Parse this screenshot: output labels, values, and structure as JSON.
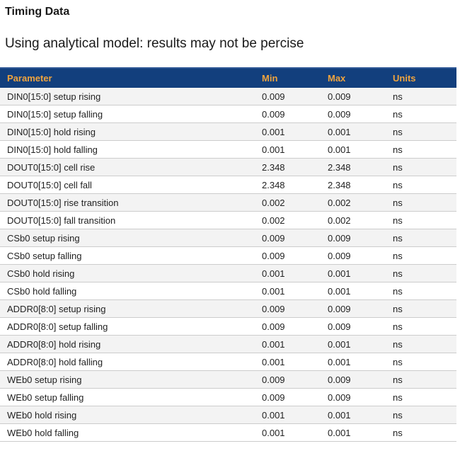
{
  "page": {
    "title": "Timing Data",
    "subtitle": "Using analytical model: results may not be percise"
  },
  "colors": {
    "header_bg": "#123f7d",
    "header_top_edge": "#2d5694",
    "header_text": "#f0a43e",
    "row_alt_bg": "#f3f3f3",
    "row_border": "#cccccc",
    "body_text": "#222222"
  },
  "table": {
    "columns": [
      "Parameter",
      "Min",
      "Max",
      "Units"
    ],
    "rows": [
      {
        "parameter": "DIN0[15:0] setup rising",
        "min": "0.009",
        "max": "0.009",
        "units": "ns"
      },
      {
        "parameter": "DIN0[15:0] setup falling",
        "min": "0.009",
        "max": "0.009",
        "units": "ns"
      },
      {
        "parameter": "DIN0[15:0] hold rising",
        "min": "0.001",
        "max": "0.001",
        "units": "ns"
      },
      {
        "parameter": "DIN0[15:0] hold falling",
        "min": "0.001",
        "max": "0.001",
        "units": "ns"
      },
      {
        "parameter": "DOUT0[15:0] cell rise",
        "min": "2.348",
        "max": "2.348",
        "units": "ns"
      },
      {
        "parameter": "DOUT0[15:0] cell fall",
        "min": "2.348",
        "max": "2.348",
        "units": "ns"
      },
      {
        "parameter": "DOUT0[15:0] rise transition",
        "min": "0.002",
        "max": "0.002",
        "units": "ns"
      },
      {
        "parameter": "DOUT0[15:0] fall transition",
        "min": "0.002",
        "max": "0.002",
        "units": "ns"
      },
      {
        "parameter": "CSb0 setup rising",
        "min": "0.009",
        "max": "0.009",
        "units": "ns"
      },
      {
        "parameter": "CSb0 setup falling",
        "min": "0.009",
        "max": "0.009",
        "units": "ns"
      },
      {
        "parameter": "CSb0 hold rising",
        "min": "0.001",
        "max": "0.001",
        "units": "ns"
      },
      {
        "parameter": "CSb0 hold falling",
        "min": "0.001",
        "max": "0.001",
        "units": "ns"
      },
      {
        "parameter": "ADDR0[8:0] setup rising",
        "min": "0.009",
        "max": "0.009",
        "units": "ns"
      },
      {
        "parameter": "ADDR0[8:0] setup falling",
        "min": "0.009",
        "max": "0.009",
        "units": "ns"
      },
      {
        "parameter": "ADDR0[8:0] hold rising",
        "min": "0.001",
        "max": "0.001",
        "units": "ns"
      },
      {
        "parameter": "ADDR0[8:0] hold falling",
        "min": "0.001",
        "max": "0.001",
        "units": "ns"
      },
      {
        "parameter": "WEb0 setup rising",
        "min": "0.009",
        "max": "0.009",
        "units": "ns"
      },
      {
        "parameter": "WEb0 setup falling",
        "min": "0.009",
        "max": "0.009",
        "units": "ns"
      },
      {
        "parameter": "WEb0 hold rising",
        "min": "0.001",
        "max": "0.001",
        "units": "ns"
      },
      {
        "parameter": "WEb0 hold falling",
        "min": "0.001",
        "max": "0.001",
        "units": "ns"
      }
    ]
  }
}
